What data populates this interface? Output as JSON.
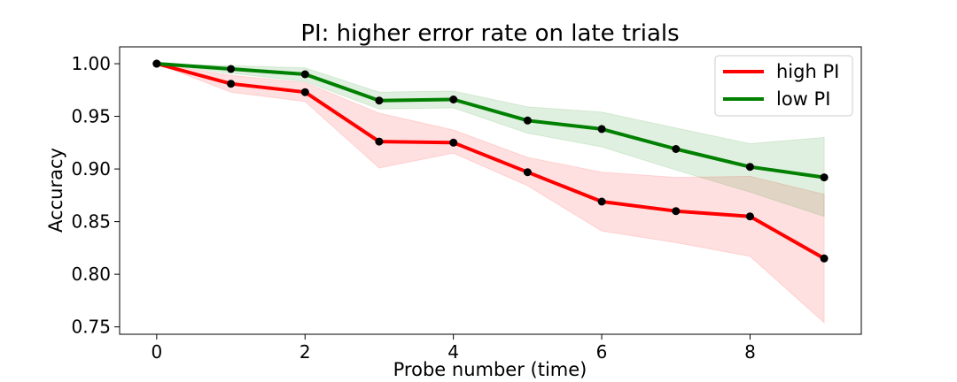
{
  "chart_data": {
    "type": "line",
    "title": "PI: higher error rate on late trials",
    "xlabel": "Probe number (time)",
    "ylabel": "Accuracy",
    "xlim": [
      -0.5,
      9.5
    ],
    "ylim": [
      0.743,
      1.016
    ],
    "xticks": [
      0,
      2,
      4,
      6,
      8
    ],
    "yticks": [
      0.75,
      0.8,
      0.85,
      0.9,
      0.95,
      1.0
    ],
    "ytick_labels": [
      "0.75",
      "0.80",
      "0.85",
      "0.90",
      "0.95",
      "1.00"
    ],
    "grid": false,
    "legend_position": "top-right",
    "x": [
      0,
      1,
      2,
      3,
      4,
      5,
      6,
      7,
      8,
      9
    ],
    "series": [
      {
        "name": "high PI",
        "color": "#ff0000",
        "values": [
          1.0,
          0.981,
          0.973,
          0.926,
          0.925,
          0.897,
          0.869,
          0.86,
          0.855,
          0.815
        ],
        "lower": [
          1.0,
          0.973,
          0.964,
          0.901,
          0.915,
          0.884,
          0.841,
          0.83,
          0.817,
          0.754
        ],
        "upper": [
          1.0,
          0.989,
          0.982,
          0.953,
          0.937,
          0.911,
          0.897,
          0.892,
          0.893,
          0.876
        ]
      },
      {
        "name": "low PI",
        "color": "#008000",
        "values": [
          1.0,
          0.995,
          0.99,
          0.965,
          0.966,
          0.946,
          0.938,
          0.919,
          0.902,
          0.892
        ],
        "lower": [
          1.0,
          0.991,
          0.983,
          0.957,
          0.958,
          0.934,
          0.921,
          0.899,
          0.878,
          0.855
        ],
        "upper": [
          1.0,
          0.998,
          0.996,
          0.973,
          0.974,
          0.959,
          0.954,
          0.939,
          0.924,
          0.93
        ]
      }
    ]
  }
}
